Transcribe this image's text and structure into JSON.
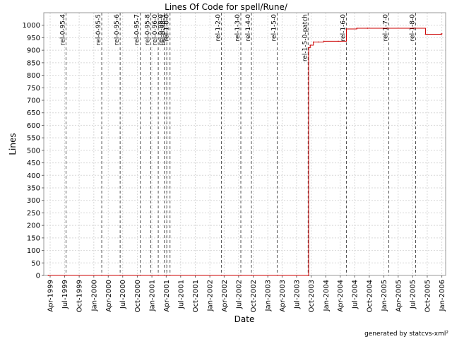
{
  "chart_data": {
    "type": "line",
    "title": "Lines Of Code for spell/Rune/",
    "xlabel": "Date",
    "ylabel": "Lines",
    "ylim": [
      0,
      1050
    ],
    "xlim": [
      "1999-02-20",
      "2006-01-25"
    ],
    "grid": true,
    "line_color": "#cc0000",
    "x_ticks": [
      {
        "date": "1999-04-01",
        "label": "Apr-1999"
      },
      {
        "date": "1999-07-01",
        "label": "Jul-1999"
      },
      {
        "date": "1999-10-01",
        "label": "Oct-1999"
      },
      {
        "date": "2000-01-01",
        "label": "Jan-2000"
      },
      {
        "date": "2000-04-01",
        "label": "Apr-2000"
      },
      {
        "date": "2000-07-01",
        "label": "Jul-2000"
      },
      {
        "date": "2000-10-01",
        "label": "Oct-2000"
      },
      {
        "date": "2001-01-01",
        "label": "Jan-2001"
      },
      {
        "date": "2001-04-01",
        "label": "Apr-2001"
      },
      {
        "date": "2001-07-01",
        "label": "Jul-2001"
      },
      {
        "date": "2001-10-01",
        "label": "Oct-2001"
      },
      {
        "date": "2002-01-01",
        "label": "Jan-2002"
      },
      {
        "date": "2002-04-01",
        "label": "Apr-2002"
      },
      {
        "date": "2002-07-01",
        "label": "Jul-2002"
      },
      {
        "date": "2002-10-01",
        "label": "Oct-2002"
      },
      {
        "date": "2003-01-01",
        "label": "Jan-2003"
      },
      {
        "date": "2003-04-01",
        "label": "Apr-2003"
      },
      {
        "date": "2003-07-01",
        "label": "Jul-2003"
      },
      {
        "date": "2003-10-01",
        "label": "Oct-2003"
      },
      {
        "date": "2004-01-01",
        "label": "Jan-2004"
      },
      {
        "date": "2004-04-01",
        "label": "Apr-2004"
      },
      {
        "date": "2004-07-01",
        "label": "Jul-2004"
      },
      {
        "date": "2004-10-01",
        "label": "Oct-2004"
      },
      {
        "date": "2005-01-01",
        "label": "Jan-2005"
      },
      {
        "date": "2005-04-01",
        "label": "Apr-2005"
      },
      {
        "date": "2005-07-01",
        "label": "Jul-2005"
      },
      {
        "date": "2005-10-01",
        "label": "Oct-2005"
      },
      {
        "date": "2006-01-01",
        "label": "Jan-2006"
      }
    ],
    "y_ticks": [
      0,
      50,
      100,
      150,
      200,
      250,
      300,
      350,
      400,
      450,
      500,
      550,
      600,
      650,
      700,
      750,
      800,
      850,
      900,
      950,
      1000
    ],
    "series": [
      {
        "x": [
          "1999-03-20",
          "2003-09-14",
          "2003-09-15",
          "2003-09-25",
          "2003-10-15",
          "2003-11-15",
          "2003-12-20",
          "2004-03-20",
          "2004-05-10",
          "2004-07-15",
          "2004-09-20",
          "2005-09-20",
          "2005-12-25",
          "2006-01-01"
        ],
        "y": [
          0,
          0,
          910,
          920,
          933,
          933,
          936,
          936,
          985,
          988,
          988,
          964,
          964,
          966
        ]
      }
    ],
    "markers": [
      {
        "date": "1999-07-10",
        "label": "rel-0-95-4"
      },
      {
        "date": "2000-02-20",
        "label": "rel-0-95-5"
      },
      {
        "date": "2000-06-15",
        "label": "rel-0-95-6"
      },
      {
        "date": "2000-10-20",
        "label": "rel-0-95-7"
      },
      {
        "date": "2000-12-25",
        "label": "rel-0-95-8"
      },
      {
        "date": "2001-02-10",
        "label": "rel-0-96-0"
      },
      {
        "date": "2001-03-20",
        "label": "rel-0-98-0"
      },
      {
        "date": "2001-04-05",
        "label": "rel-0-98-1"
      },
      {
        "date": "2001-04-25",
        "label": "rel-1-0-0"
      },
      {
        "date": "2002-03-15",
        "label": "rel-1-2-0"
      },
      {
        "date": "2002-07-15",
        "label": "rel-1-3-0"
      },
      {
        "date": "2002-09-20",
        "label": "rel-1-4-0"
      },
      {
        "date": "2003-03-01",
        "label": "rel-1-5-0"
      },
      {
        "date": "2003-09-12",
        "label": "rel-1-5-0-patch"
      },
      {
        "date": "2004-05-10",
        "label": "rel-1-6-0"
      },
      {
        "date": "2005-02-01",
        "label": "rel-1-7-0"
      },
      {
        "date": "2005-07-20",
        "label": "rel-1-8-0"
      }
    ]
  },
  "footer": "generated by statcvs-xml²"
}
